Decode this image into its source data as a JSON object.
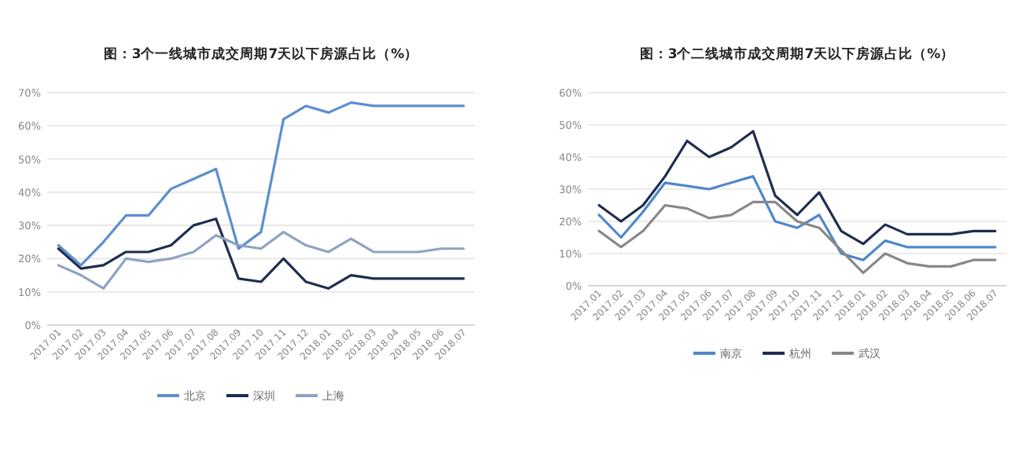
{
  "chart_data": [
    {
      "type": "line",
      "title": "图：3个一线城市成交周期7天以下房源占比（%）",
      "categories": [
        "2017.01",
        "2017.02",
        "2017.03",
        "2017.04",
        "2017.05",
        "2017.06",
        "2017.07",
        "2017.08",
        "2017.09",
        "2017.10",
        "2017.11",
        "2017.12",
        "2018.01",
        "2018.02",
        "2018.03",
        "2018.04",
        "2018.05",
        "2018.06",
        "2018.07"
      ],
      "series": [
        {
          "name": "北京",
          "color": "#5b8fd0",
          "values": [
            24,
            18,
            25,
            33,
            33,
            41,
            44,
            47,
            23,
            28,
            62,
            66,
            64,
            67,
            66,
            66,
            66,
            66,
            66
          ]
        },
        {
          "name": "深圳",
          "color": "#1f2d4f",
          "values": [
            23,
            17,
            18,
            22,
            22,
            24,
            30,
            32,
            14,
            13,
            20,
            13,
            11,
            15,
            14,
            14,
            14,
            14,
            14
          ]
        },
        {
          "name": "上海",
          "color": "#8fa3c0",
          "values": [
            18,
            15,
            11,
            20,
            19,
            20,
            22,
            27,
            24,
            23,
            28,
            24,
            22,
            26,
            22,
            22,
            22,
            23,
            23
          ]
        }
      ],
      "ylim": [
        0,
        70
      ],
      "yticks": [
        {
          "value": 0,
          "label": "0%"
        },
        {
          "value": 10,
          "label": "10%"
        },
        {
          "value": 20,
          "label": "20%"
        },
        {
          "value": 30,
          "label": "30%"
        },
        {
          "value": 40,
          "label": "40%"
        },
        {
          "value": 50,
          "label": "50%"
        },
        {
          "value": 60,
          "label": "60%"
        },
        {
          "value": 70,
          "label": "70%"
        }
      ],
      "grid": "y",
      "legend": "bottom"
    },
    {
      "type": "line",
      "title": "图：3个二线城市成交周期7天以下房源占比（%）",
      "categories": [
        "2017.01",
        "2017.02",
        "2017.03",
        "2017.04",
        "2017.05",
        "2017.06",
        "2017.07",
        "2017.08",
        "2017.09",
        "2017.10",
        "2017.11",
        "2017.12",
        "2018.01",
        "2018.02",
        "2018.03",
        "2018.04",
        "2018.05",
        "2018.06",
        "2018.07"
      ],
      "series": [
        {
          "name": "南京",
          "color": "#4f87c9",
          "values": [
            22,
            15,
            23,
            32,
            31,
            30,
            32,
            34,
            20,
            18,
            22,
            10,
            8,
            14,
            12,
            12,
            12,
            12,
            12
          ]
        },
        {
          "name": "杭州",
          "color": "#1f2d4f",
          "values": [
            25,
            20,
            25,
            34,
            45,
            40,
            43,
            48,
            28,
            22,
            29,
            17,
            13,
            19,
            16,
            16,
            16,
            17,
            17
          ]
        },
        {
          "name": "武汉",
          "color": "#888888",
          "values": [
            17,
            12,
            17,
            25,
            24,
            21,
            22,
            26,
            26,
            20,
            18,
            11,
            4,
            10,
            7,
            6,
            6,
            8,
            8
          ]
        }
      ],
      "ylim": [
        0,
        60
      ],
      "yticks": [
        {
          "value": 0,
          "label": "0%"
        },
        {
          "value": 10,
          "label": "10%"
        },
        {
          "value": 20,
          "label": "20%"
        },
        {
          "value": 30,
          "label": "30%"
        },
        {
          "value": 40,
          "label": "40%"
        },
        {
          "value": 50,
          "label": "50%"
        },
        {
          "value": 60,
          "label": "60%"
        }
      ],
      "grid": "y",
      "legend": "bottom"
    }
  ]
}
